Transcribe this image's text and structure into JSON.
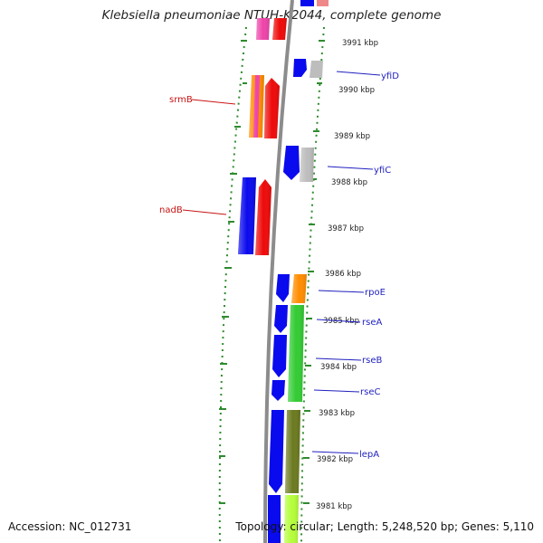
{
  "title": "Klebsiella pneumoniae NTUH-K2044, complete genome",
  "footer": {
    "accession": "Accession: NC_012731",
    "stats": "Topology: circular; Length: 5,248,520 bp; Genes: 5,110"
  },
  "kbp_labels": [
    "3991 kbp",
    "3990 kbp",
    "3989 kbp",
    "3988 kbp",
    "3987 kbp",
    "3986 kbp",
    "3985 kbp",
    "3984 kbp",
    "3983 kbp",
    "3982 kbp",
    "3981 kbp"
  ],
  "gene_labels": [
    {
      "name": "yfiD",
      "color": "#1f1fbf"
    },
    {
      "name": "srmB",
      "color": "#c81414"
    },
    {
      "name": "yfiC",
      "color": "#1f1fbf"
    },
    {
      "name": "nadB",
      "color": "#c81414"
    },
    {
      "name": "rpoE",
      "color": "#1f1fbf"
    },
    {
      "name": "rseA",
      "color": "#1f1fbf"
    },
    {
      "name": "rseB",
      "color": "#1f1fbf"
    },
    {
      "name": "rseC",
      "color": "#1f1fbf"
    },
    {
      "name": "lepA",
      "color": "#1f1fbf"
    }
  ],
  "colors": {
    "backbone": "#8c8c8c",
    "ticks": "#2e8b2e",
    "blue": "#0a0aee",
    "red": "#ee0a0a",
    "orange": "#ff8c00",
    "green": "#33cc33",
    "olive": "#6b7a1f",
    "lime": "#b5ff3a",
    "gray": "#bdbdbd",
    "pink": "#ee44aa"
  }
}
